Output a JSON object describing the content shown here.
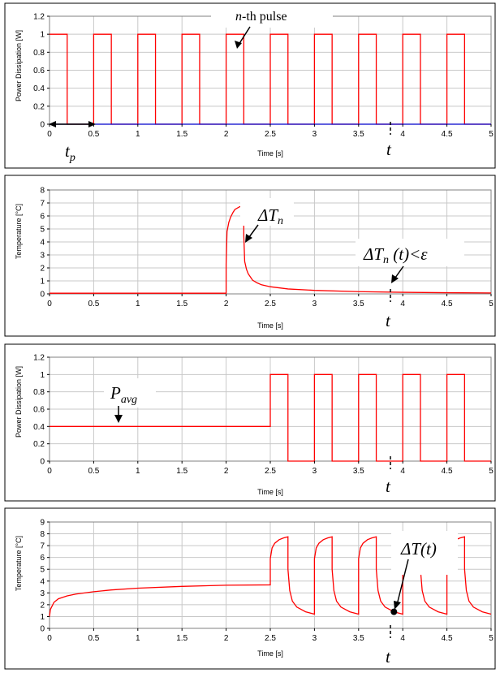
{
  "chart_data": [
    {
      "type": "line",
      "ylabel": "Power Dissipation [W]",
      "xlabel": "Time [s]",
      "xlim": [
        0,
        5
      ],
      "ylim": [
        0,
        1.2
      ],
      "xticks": [
        "0",
        "0.5",
        "1",
        "1.5",
        "2",
        "2.5",
        "3",
        "3.5",
        "4",
        "4.5",
        "5"
      ],
      "yticks": [
        "0",
        "0.2",
        "0.4",
        "0.6",
        "0.8",
        "1",
        "1.2"
      ],
      "grid": true,
      "series": [
        {
          "color": "#ff0000",
          "x": [
            0,
            0.2,
            0.2,
            0.5,
            0.5,
            0.7,
            0.7,
            1.0,
            1.0,
            1.2,
            1.2,
            1.5,
            1.5,
            1.7,
            1.7,
            2.0,
            2.0,
            2.2,
            2.2,
            2.5,
            2.5,
            2.7,
            2.7,
            3.0,
            3.0,
            3.2,
            3.2,
            3.5,
            3.5,
            3.7,
            3.7,
            4.0,
            4.0,
            4.2,
            4.2,
            4.5,
            4.5,
            4.7,
            4.7,
            5.0
          ],
          "y": [
            1,
            1,
            0,
            0,
            1,
            1,
            0,
            0,
            1,
            1,
            0,
            0,
            1,
            1,
            0,
            0,
            1,
            1,
            0,
            0,
            1,
            1,
            0,
            0,
            1,
            1,
            0,
            0,
            1,
            1,
            0,
            0,
            1,
            1,
            0,
            0,
            1,
            1,
            0,
            0
          ]
        },
        {
          "color": "#0000cc",
          "x": [
            0,
            5
          ],
          "y": [
            0,
            0
          ]
        }
      ],
      "annotations": [
        {
          "text": "-th pulse",
          "italic_prefix": "n"
        },
        {
          "text": "t",
          "sub": "p"
        },
        {
          "text": "t"
        }
      ]
    },
    {
      "type": "line",
      "ylabel": "Temperature [°C]",
      "xlabel": "Time [s]",
      "xlim": [
        0,
        5
      ],
      "ylim": [
        0,
        8
      ],
      "xticks": [
        "0",
        "0.5",
        "1",
        "1.5",
        "2",
        "2.5",
        "3",
        "3.5",
        "4",
        "4.5",
        "5"
      ],
      "yticks": [
        "0",
        "1",
        "2",
        "3",
        "4",
        "5",
        "6",
        "7",
        "8"
      ],
      "grid": true,
      "series": [
        {
          "color": "#ff0000",
          "x": [
            0,
            2.0,
            2.0,
            2.01,
            2.03,
            2.05,
            2.08,
            2.1,
            2.15,
            2.2,
            2.2,
            2.21,
            2.23,
            2.25,
            2.28,
            2.3,
            2.35,
            2.4,
            2.5,
            2.7,
            3.0,
            3.5,
            4.0,
            4.5,
            5.0
          ],
          "y": [
            0.05,
            0.05,
            2.3,
            4.8,
            5.5,
            5.9,
            6.3,
            6.5,
            6.7,
            6.8,
            4.5,
            2.5,
            1.9,
            1.55,
            1.25,
            1.05,
            0.85,
            0.7,
            0.55,
            0.38,
            0.27,
            0.17,
            0.12,
            0.09,
            0.07
          ]
        }
      ],
      "annotations": [
        {
          "text": "ΔT",
          "sub": "n"
        },
        {
          "text": "ΔT",
          "sub": "n",
          "suffix": " (t)<ε"
        },
        {
          "text": "t"
        }
      ]
    },
    {
      "type": "line",
      "ylabel": "Power Dissipation [W]",
      "xlabel": "Time [s]",
      "xlim": [
        0,
        5
      ],
      "ylim": [
        0,
        1.2
      ],
      "xticks": [
        "0",
        "0.5",
        "1",
        "1.5",
        "2",
        "2.5",
        "3",
        "3.5",
        "4",
        "4.5",
        "5"
      ],
      "yticks": [
        "0",
        "0.2",
        "0.4",
        "0.6",
        "0.8",
        "1",
        "1.2"
      ],
      "grid": true,
      "series": [
        {
          "color": "#ff0000",
          "x": [
            0,
            2.5,
            2.5,
            2.7,
            2.7,
            3.0,
            3.0,
            3.2,
            3.2,
            3.5,
            3.5,
            3.7,
            3.7,
            4.0,
            4.0,
            4.2,
            4.2,
            4.5,
            4.5,
            4.7,
            4.7,
            5.0
          ],
          "y": [
            0.4,
            0.4,
            1,
            1,
            0,
            0,
            1,
            1,
            0,
            0,
            1,
            1,
            0,
            0,
            1,
            1,
            0,
            0,
            1,
            1,
            0,
            0
          ]
        }
      ],
      "annotations": [
        {
          "text": "P",
          "sub": "avg"
        },
        {
          "text": "t"
        }
      ]
    },
    {
      "type": "line",
      "ylabel": "Temperature [°C]",
      "xlabel": "Time [s]",
      "xlim": [
        0,
        5
      ],
      "ylim": [
        0,
        9
      ],
      "xticks": [
        "0",
        "0.5",
        "1",
        "1.5",
        "2",
        "2.5",
        "3",
        "3.5",
        "4",
        "4.5",
        "5"
      ],
      "yticks": [
        "0",
        "1",
        "2",
        "3",
        "4",
        "5",
        "6",
        "7",
        "8",
        "9"
      ],
      "grid": true,
      "series": [
        {
          "color": "#ff0000",
          "x": [
            0,
            0.01,
            0.05,
            0.1,
            0.2,
            0.3,
            0.5,
            0.7,
            1.0,
            1.5,
            2.0,
            2.5,
            2.5,
            2.52,
            2.55,
            2.6,
            2.65,
            2.7,
            2.7,
            2.72,
            2.75,
            2.8,
            2.9,
            3.0,
            3.0,
            3.02,
            3.05,
            3.1,
            3.15,
            3.2,
            3.2,
            3.22,
            3.25,
            3.3,
            3.4,
            3.5,
            3.5,
            3.52,
            3.55,
            3.6,
            3.65,
            3.7,
            3.7,
            3.72,
            3.75,
            3.8,
            3.9,
            4.0,
            4.0,
            4.02,
            4.05,
            4.1,
            4.15,
            4.2,
            4.2,
            4.22,
            4.25,
            4.3,
            4.4,
            4.5,
            4.5,
            4.52,
            4.55,
            4.6,
            4.65,
            4.7,
            4.7,
            4.72,
            4.75,
            4.8,
            4.9,
            5.0
          ],
          "y": [
            1.0,
            1.6,
            2.2,
            2.5,
            2.75,
            2.9,
            3.1,
            3.25,
            3.4,
            3.55,
            3.65,
            3.68,
            5.9,
            6.8,
            7.2,
            7.5,
            7.65,
            7.75,
            5.0,
            3.2,
            2.3,
            1.8,
            1.4,
            1.2,
            5.9,
            6.8,
            7.2,
            7.5,
            7.65,
            7.75,
            5.0,
            3.2,
            2.3,
            1.8,
            1.4,
            1.2,
            5.9,
            6.8,
            7.2,
            7.5,
            7.65,
            7.75,
            5.0,
            3.2,
            2.3,
            1.8,
            1.4,
            1.2,
            5.9,
            6.8,
            7.2,
            7.5,
            7.65,
            7.75,
            5.0,
            3.2,
            2.3,
            1.8,
            1.4,
            1.2,
            5.9,
            6.8,
            7.2,
            7.5,
            7.65,
            7.75,
            5.0,
            3.2,
            2.3,
            1.8,
            1.4,
            1.2
          ]
        }
      ],
      "marker": {
        "x": 3.9,
        "y": 1.4
      },
      "annotations": [
        {
          "text": "ΔT(t)"
        },
        {
          "text": "t"
        }
      ]
    }
  ]
}
